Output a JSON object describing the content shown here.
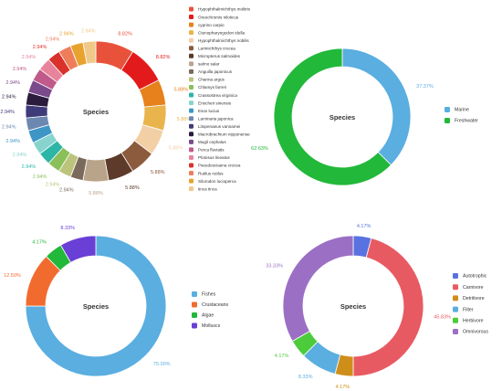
{
  "chart_data": [
    {
      "type": "pie",
      "title": "Species",
      "legend_placement": "right",
      "series": [
        {
          "name": "Hypophthalmichthys molitrix",
          "value": 8.82,
          "color": "#e8523a"
        },
        {
          "name": "Oreochromis niloticus",
          "value": 8.82,
          "color": "#e31a1c"
        },
        {
          "name": "cyprino carpio",
          "value": 5.88,
          "color": "#e6811c"
        },
        {
          "name": "Ctenopharyngodon idella",
          "value": 5.88,
          "color": "#e9b44c"
        },
        {
          "name": "Hypophthalmichthys nobilis",
          "value": 5.88,
          "color": "#f3cfa6"
        },
        {
          "name": "Larimichthys crocea",
          "value": 5.88,
          "color": "#8c5a3c"
        },
        {
          "name": "Micropterus salmoides",
          "value": 5.88,
          "color": "#5d3a2a"
        },
        {
          "name": "salmo salar",
          "value": 5.88,
          "color": "#b9a48a"
        },
        {
          "name": "Anguilla japonicus",
          "value": 2.94,
          "color": "#7a6a5c"
        },
        {
          "name": "Channa argus",
          "value": 2.94,
          "color": "#bbc47a"
        },
        {
          "name": "Chlamys farreri",
          "value": 2.94,
          "color": "#8bbf5a"
        },
        {
          "name": "Crassostrea virginica",
          "value": 2.94,
          "color": "#2db5a6"
        },
        {
          "name": "Eriocheir sinensis",
          "value": 2.94,
          "color": "#87d4cf"
        },
        {
          "name": "Esox lucius",
          "value": 2.94,
          "color": "#3e96c7"
        },
        {
          "name": "Laminaria japonica",
          "value": 2.94,
          "color": "#6c88b0"
        },
        {
          "name": "Litopenaeus vannamei",
          "value": 2.94,
          "color": "#3f3a78"
        },
        {
          "name": "Macrobrachium nipponense",
          "value": 2.94,
          "color": "#2b1b3d"
        },
        {
          "name": "Mugil cephalus",
          "value": 2.94,
          "color": "#7a4a8c"
        },
        {
          "name": "Perca fluviatis",
          "value": 2.94,
          "color": "#c05a8a"
        },
        {
          "name": "Plotosus lineatus",
          "value": 2.94,
          "color": "#e7849c"
        },
        {
          "name": "Pseudosciaena crocea",
          "value": 2.94,
          "color": "#d9322a"
        },
        {
          "name": "Rutilus rutilus",
          "value": 2.94,
          "color": "#ef7d5a"
        },
        {
          "name": "Silurodon lucioperca",
          "value": 2.94,
          "color": "#e8a22e"
        },
        {
          "name": "tinca tinca",
          "value": 2.94,
          "color": "#f0c98a"
        }
      ],
      "data_labels": [
        "8.82%",
        "8.82%",
        "5.88%",
        "5.88%",
        "5.88%",
        "5.88%",
        "5.88%",
        "5.88%",
        "2.94%",
        "2.94%",
        "2.94%",
        "2.94%",
        "2.94%",
        "2.94%",
        "2.94%",
        "2.94%",
        "2.94%",
        "2.94%",
        "2.94%",
        "2.94%",
        "2.94%",
        "2.94%",
        "2.94%",
        "2.94%"
      ]
    },
    {
      "type": "pie",
      "title": "Species",
      "legend_placement": "right",
      "series": [
        {
          "name": "Marine",
          "value": 37.37,
          "color": "#5aaee0",
          "label": "37.37%"
        },
        {
          "name": "Freshwater",
          "value": 62.63,
          "color": "#22b83a",
          "label": "62.63%"
        }
      ]
    },
    {
      "type": "pie",
      "title": "Species",
      "legend_placement": "right",
      "series": [
        {
          "name": "Fishes",
          "value": 75.0,
          "color": "#5aaee0",
          "label": "75.00%"
        },
        {
          "name": "Crustaceans",
          "value": 12.5,
          "color": "#f26b2e",
          "label": "12.50%"
        },
        {
          "name": "Algae",
          "value": 4.17,
          "color": "#22b83a",
          "label": "4.17%"
        },
        {
          "name": "Molluscs",
          "value": 8.33,
          "color": "#6a3fd6",
          "label": "8.33%"
        }
      ]
    },
    {
      "type": "pie",
      "title": "Species",
      "legend_placement": "right",
      "series": [
        {
          "name": "Autotrophic",
          "value": 4.17,
          "color": "#5a72e0",
          "label": "4.17%"
        },
        {
          "name": "Carnivore",
          "value": 45.83,
          "color": "#e85a62",
          "label": "45.83%"
        },
        {
          "name": "Detritivore",
          "value": 4.17,
          "color": "#cf8e1a",
          "label": "4.17%"
        },
        {
          "name": "Filter",
          "value": 8.33,
          "color": "#5aaee0",
          "label": "8.33%"
        },
        {
          "name": "Herbivore",
          "value": 4.17,
          "color": "#4ccc3a",
          "label": "4.17%"
        },
        {
          "name": "Omnivorous",
          "value": 33.33,
          "color": "#9b6fc4",
          "label": "33.33%"
        }
      ]
    }
  ]
}
